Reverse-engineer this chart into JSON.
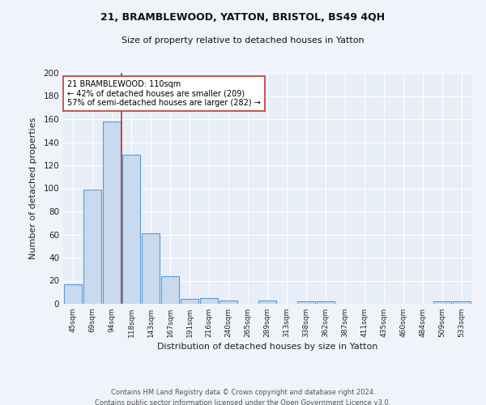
{
  "title1": "21, BRAMBLEWOOD, YATTON, BRISTOL, BS49 4QH",
  "title2": "Size of property relative to detached houses in Yatton",
  "xlabel": "Distribution of detached houses by size in Yatton",
  "ylabel": "Number of detached properties",
  "bar_labels": [
    "45sqm",
    "69sqm",
    "94sqm",
    "118sqm",
    "143sqm",
    "167sqm",
    "191sqm",
    "216sqm",
    "240sqm",
    "265sqm",
    "289sqm",
    "313sqm",
    "338sqm",
    "362sqm",
    "387sqm",
    "411sqm",
    "435sqm",
    "460sqm",
    "484sqm",
    "509sqm",
    "533sqm"
  ],
  "bar_values": [
    17,
    99,
    158,
    129,
    61,
    24,
    4,
    5,
    3,
    0,
    3,
    0,
    2,
    2,
    0,
    0,
    0,
    0,
    0,
    2,
    2
  ],
  "bar_color": "#c9d9ee",
  "bar_edge_color": "#5b9bd5",
  "property_line_color": "#c0392b",
  "annotation_title": "21 BRAMBLEWOOD: 110sqm",
  "annotation_line1": "← 42% of detached houses are smaller (209)",
  "annotation_line2": "57% of semi-detached houses are larger (282) →",
  "annotation_box_color": "#ffffff",
  "annotation_box_edge": "#c0392b",
  "ylim": [
    0,
    200
  ],
  "yticks": [
    0,
    20,
    40,
    60,
    80,
    100,
    120,
    140,
    160,
    180,
    200
  ],
  "plot_bg_color": "#e8eef7",
  "fig_bg_color": "#f0f4fa",
  "footer1": "Contains HM Land Registry data © Crown copyright and database right 2024.",
  "footer2": "Contains public sector information licensed under the Open Government Licence v3.0."
}
